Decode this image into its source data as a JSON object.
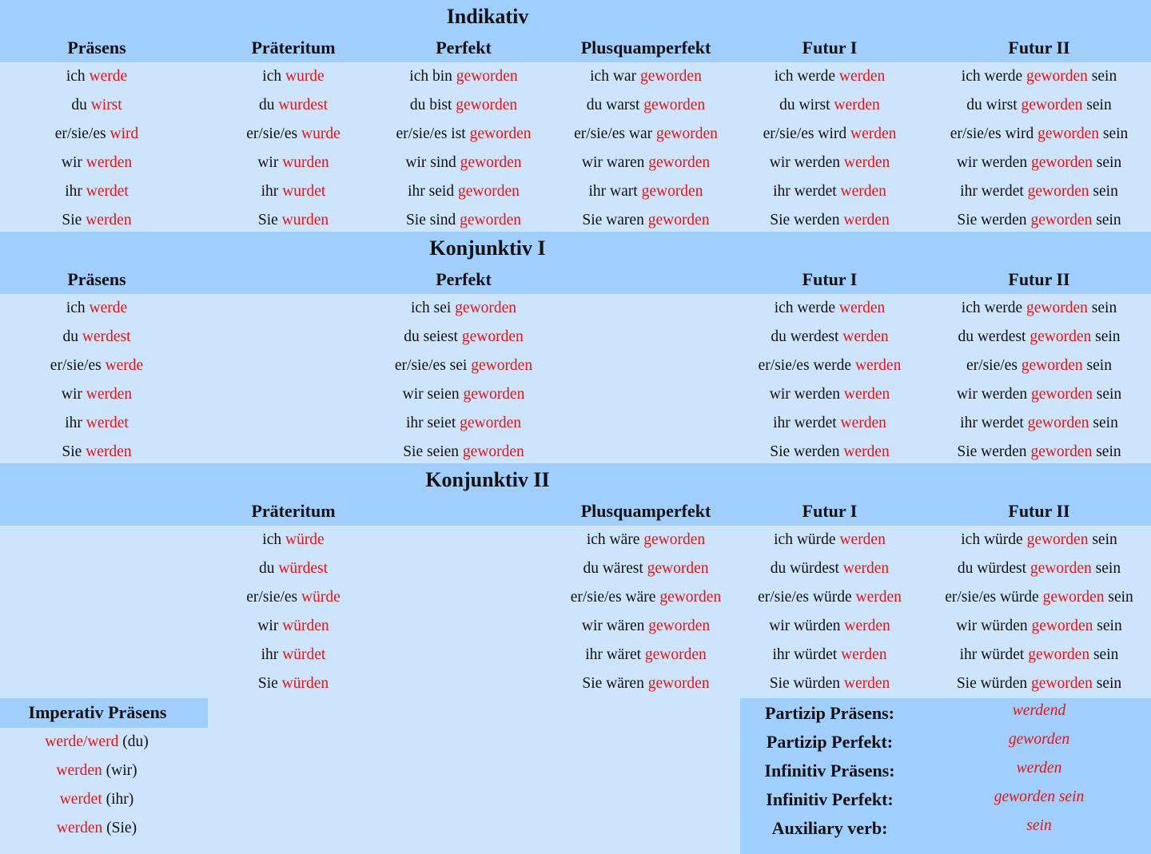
{
  "sections": [
    {
      "title": "Indikativ",
      "headers": [
        "Präsens",
        "Präteritum",
        "Perfekt",
        "Plusquamperfekt",
        "Futur I",
        "Futur II"
      ],
      "rows": [
        [
          [
            "ich",
            "werde"
          ],
          [
            "ich",
            "wurde"
          ],
          [
            "ich bin",
            "geworden"
          ],
          [
            "ich war",
            "geworden"
          ],
          [
            "ich werde",
            "werden"
          ],
          [
            "ich werde",
            "geworden",
            "sein"
          ]
        ],
        [
          [
            "du",
            "wirst"
          ],
          [
            "du",
            "wurdest"
          ],
          [
            "du bist",
            "geworden"
          ],
          [
            "du warst",
            "geworden"
          ],
          [
            "du wirst",
            "werden"
          ],
          [
            "du wirst",
            "geworden",
            "sein"
          ]
        ],
        [
          [
            "er/sie/es",
            "wird"
          ],
          [
            "er/sie/es",
            "wurde"
          ],
          [
            "er/sie/es ist",
            "geworden"
          ],
          [
            "er/sie/es war",
            "geworden"
          ],
          [
            "er/sie/es wird",
            "werden"
          ],
          [
            "er/sie/es wird",
            "geworden",
            "sein"
          ]
        ],
        [
          [
            "wir",
            "werden"
          ],
          [
            "wir",
            "wurden"
          ],
          [
            "wir sind",
            "geworden"
          ],
          [
            "wir waren",
            "geworden"
          ],
          [
            "wir werden",
            "werden"
          ],
          [
            "wir werden",
            "geworden",
            "sein"
          ]
        ],
        [
          [
            "ihr",
            "werdet"
          ],
          [
            "ihr",
            "wurdet"
          ],
          [
            "ihr seid",
            "geworden"
          ],
          [
            "ihr wart",
            "geworden"
          ],
          [
            "ihr werdet",
            "werden"
          ],
          [
            "ihr werdet",
            "geworden",
            "sein"
          ]
        ],
        [
          [
            "Sie",
            "werden"
          ],
          [
            "Sie",
            "wurden"
          ],
          [
            "Sie sind",
            "geworden"
          ],
          [
            "Sie waren",
            "geworden"
          ],
          [
            "Sie werden",
            "werden"
          ],
          [
            "Sie werden",
            "geworden",
            "sein"
          ]
        ]
      ]
    },
    {
      "title": "Konjunktiv I",
      "headers": [
        "Präsens",
        null,
        "Perfekt",
        null,
        "Futur I",
        "Futur II"
      ],
      "rows": [
        [
          [
            "ich",
            "werde"
          ],
          null,
          [
            "ich sei",
            "geworden"
          ],
          null,
          [
            "ich werde",
            "werden"
          ],
          [
            "ich werde",
            "geworden",
            "sein"
          ]
        ],
        [
          [
            "du",
            "werdest"
          ],
          null,
          [
            "du seiest",
            "geworden"
          ],
          null,
          [
            "du werdest",
            "werden"
          ],
          [
            "du werdest",
            "geworden",
            "sein"
          ]
        ],
        [
          [
            "er/sie/es",
            "werde"
          ],
          null,
          [
            "er/sie/es sei",
            "geworden"
          ],
          null,
          [
            "er/sie/es werde",
            "werden"
          ],
          [
            "er/sie/es",
            "geworden",
            "sein"
          ]
        ],
        [
          [
            "wir",
            "werden"
          ],
          null,
          [
            "wir seien",
            "geworden"
          ],
          null,
          [
            "wir werden",
            "werden"
          ],
          [
            "wir werden",
            "geworden",
            "sein"
          ]
        ],
        [
          [
            "ihr",
            "werdet"
          ],
          null,
          [
            "ihr seiet",
            "geworden"
          ],
          null,
          [
            "ihr werdet",
            "werden"
          ],
          [
            "ihr werdet",
            "geworden",
            "sein"
          ]
        ],
        [
          [
            "Sie",
            "werden"
          ],
          null,
          [
            "Sie seien",
            "geworden"
          ],
          null,
          [
            "Sie werden",
            "werden"
          ],
          [
            "Sie werden",
            "geworden",
            "sein"
          ]
        ]
      ]
    },
    {
      "title": "Konjunktiv II",
      "headers": [
        null,
        "Präteritum",
        null,
        "Plusquamperfekt",
        "Futur I",
        "Futur II"
      ],
      "rows": [
        [
          null,
          [
            "ich",
            "würde"
          ],
          null,
          [
            "ich wäre",
            "geworden"
          ],
          [
            "ich würde",
            "werden"
          ],
          [
            "ich würde",
            "geworden",
            "sein"
          ]
        ],
        [
          null,
          [
            "du",
            "würdest"
          ],
          null,
          [
            "du wärest",
            "geworden"
          ],
          [
            "du würdest",
            "werden"
          ],
          [
            "du würdest",
            "geworden",
            "sein"
          ]
        ],
        [
          null,
          [
            "er/sie/es",
            "würde"
          ],
          null,
          [
            "er/sie/es wäre",
            "geworden"
          ],
          [
            "er/sie/es würde",
            "werden"
          ],
          [
            "er/sie/es würde",
            "geworden",
            "sein"
          ]
        ],
        [
          null,
          [
            "wir",
            "würden"
          ],
          null,
          [
            "wir wären",
            "geworden"
          ],
          [
            "wir würden",
            "werden"
          ],
          [
            "wir würden",
            "geworden",
            "sein"
          ]
        ],
        [
          null,
          [
            "ihr",
            "würdet"
          ],
          null,
          [
            "ihr wäret",
            "geworden"
          ],
          [
            "ihr würdet",
            "werden"
          ],
          [
            "ihr würdet",
            "geworden",
            "sein"
          ]
        ],
        [
          null,
          [
            "Sie",
            "würden"
          ],
          null,
          [
            "Sie wären",
            "geworden"
          ],
          [
            "Sie würden",
            "werden"
          ],
          [
            "Sie würden",
            "geworden",
            "sein"
          ]
        ]
      ]
    }
  ],
  "imperativ": {
    "title": "Imperativ Präsens",
    "rows": [
      {
        "verb": "werde/werd",
        "post": "(du)"
      },
      {
        "verb": "werden",
        "post": "(wir)"
      },
      {
        "verb": "werdet",
        "post": "(ihr)"
      },
      {
        "verb": "werden",
        "post": "(Sie)"
      }
    ]
  },
  "forms": [
    {
      "label": "Partizip Präsens:",
      "value": "werdend"
    },
    {
      "label": "Partizip Perfekt:",
      "value": "geworden"
    },
    {
      "label": "Infinitiv Präsens:",
      "value": "werden"
    },
    {
      "label": "Infinitiv Perfekt:",
      "value": "geworden sein"
    },
    {
      "label": "Auxiliary verb:",
      "value": "sein"
    }
  ]
}
